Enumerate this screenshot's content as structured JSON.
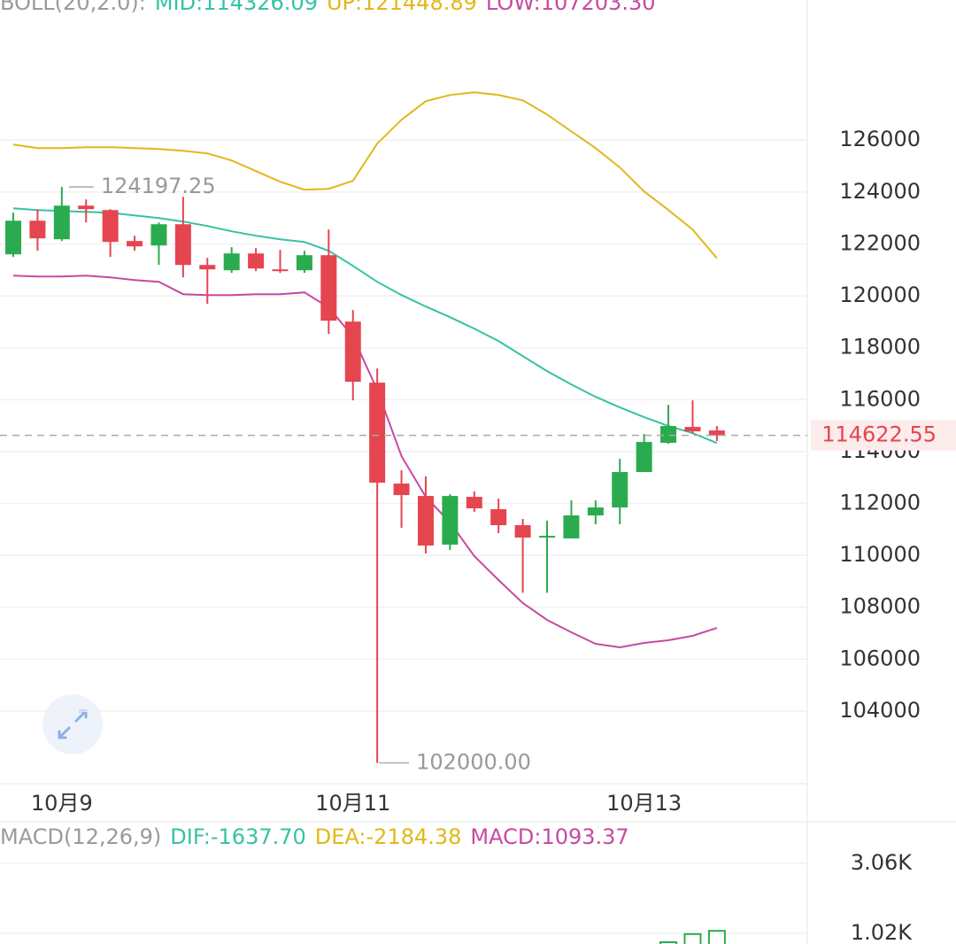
{
  "chart_data": [
    {
      "type": "candlestick",
      "legend": [
        {
          "text": "BOLL(20,2.0):",
          "color": "#9a9a9a"
        },
        {
          "text": "MID:114326.09",
          "color": "#35c2a4"
        },
        {
          "text": "UP:121448.89",
          "color": "#e2b719"
        },
        {
          "text": "LOW:107203.30",
          "color": "#c64aa2"
        }
      ],
      "categories": [
        null,
        null,
        "10月9",
        null,
        null,
        null,
        null,
        null,
        null,
        null,
        null,
        null,
        null,
        null,
        "10月11",
        null,
        null,
        null,
        null,
        null,
        null,
        null,
        null,
        null,
        null,
        null,
        "10月13",
        null,
        null,
        null
      ],
      "open": [
        121600,
        122896,
        122180,
        123476,
        123305,
        122112,
        121941,
        122759,
        121190,
        120986,
        121634,
        121020,
        120986,
        121566,
        119008,
        116654,
        112766,
        112288,
        110412,
        112254,
        111777,
        111163,
        110685,
        110651,
        111538,
        111845,
        113210,
        114335,
        114949,
        114813
      ],
      "high": [
        123203,
        123340,
        124197.25,
        123714,
        123340,
        122316,
        122828,
        123817,
        121464,
        121873,
        121839,
        121771,
        121736,
        122555,
        119451,
        117200,
        113278,
        113039,
        112356,
        112459,
        112186,
        111402,
        111333,
        112118,
        112118,
        113721,
        114676,
        115801,
        115972,
        114983
      ],
      "low": [
        121498,
        121736,
        122112,
        122828,
        121498,
        121736,
        121190,
        120713,
        119690,
        120884,
        120952,
        120884,
        120884,
        118530,
        115972,
        102000,
        111061,
        110071,
        110207,
        111674,
        110856,
        108560,
        108560,
        110651,
        111197,
        111197,
        113210,
        114301,
        114676,
        114403
      ],
      "close": [
        122896,
        122214,
        123476,
        123340,
        122078,
        121907,
        122759,
        121190,
        121020,
        121634,
        121054,
        120952,
        121566,
        119042,
        116688,
        112800,
        112322,
        110378,
        112288,
        111811,
        111163,
        110685,
        110753,
        111538,
        111845,
        113210,
        114369,
        114983,
        114778,
        114622.55
      ],
      "up_color": "#2bab4f",
      "down_color": "#e5454f",
      "overlays": [
        {
          "color": "#e2b719",
          "values": [
            125829,
            125693,
            125693,
            125727,
            125727,
            125693,
            125659,
            125590,
            125488,
            125215,
            124806,
            124397,
            124090,
            124124,
            124431,
            125864,
            126785,
            127501,
            127740,
            127842,
            127740,
            127535,
            126989,
            126341,
            125693,
            124943,
            124022,
            123306,
            122555,
            121448.89
          ]
        },
        {
          "color": "#35c2a4",
          "values": [
            123374,
            123305,
            123271,
            123237,
            123203,
            123101,
            122998,
            122862,
            122691,
            122487,
            122316,
            122180,
            122077,
            121736,
            121156,
            120543,
            120031,
            119588,
            119178,
            118735,
            118258,
            117678,
            117098,
            116586,
            116109,
            115699,
            115324,
            114983,
            114710,
            114326.09
          ]
        },
        {
          "color": "#c64aa2",
          "values": [
            120781,
            120747,
            120747,
            120781,
            120713,
            120611,
            120543,
            120065,
            120031,
            120031,
            120065,
            120065,
            120133,
            119553,
            118428,
            116381,
            113823,
            112254,
            111265,
            109969,
            109048,
            108161,
            107513,
            107035,
            106592,
            106456,
            106626,
            106729,
            106899,
            107203.3
          ]
        }
      ],
      "ylim": [
        101200,
        131400
      ],
      "yticks": [
        104000,
        106000,
        108000,
        110000,
        112000,
        114000,
        116000,
        118000,
        120000,
        122000,
        124000,
        126000
      ],
      "grid": true,
      "annotations": {
        "high": 124197.25,
        "low": {
          "value": 102000,
          "label": "102000.00"
        }
      },
      "last_price": 114622.55
    },
    {
      "type": "bar",
      "legend": [
        {
          "text": "MACD(12,26,9)",
          "color": "#9a9a9a"
        },
        {
          "text": "DIF:-1637.70",
          "color": "#35c2a4"
        },
        {
          "text": "DEA:-2184.38",
          "color": "#e2b719"
        },
        {
          "text": "MACD:1093.37",
          "color": "#c64aa2"
        }
      ],
      "values": [
        null,
        null,
        null,
        null,
        null,
        null,
        null,
        null,
        null,
        null,
        null,
        null,
        null,
        null,
        null,
        null,
        null,
        null,
        null,
        null,
        null,
        null,
        null,
        null,
        null,
        null,
        null,
        762,
        1000,
        1093.37
      ],
      "color": "#2bab4f",
      "ylim": [
        710,
        4222
      ],
      "yticks": [
        {
          "value": 1020,
          "label": "1.02K"
        },
        {
          "value": 3060,
          "label": "3.06K"
        }
      ],
      "grid": true
    }
  ]
}
